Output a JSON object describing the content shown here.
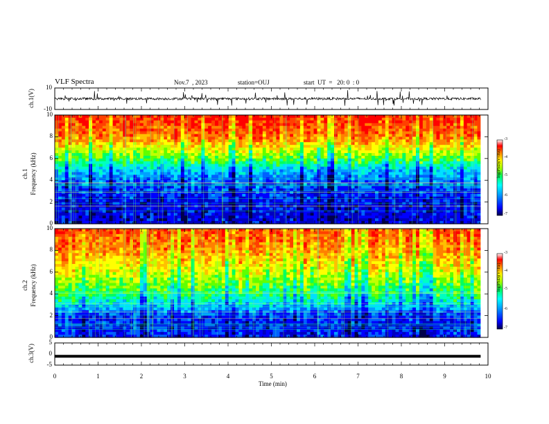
{
  "header": {
    "title": "VLF Spectra",
    "date": "Nov.7  , 2023",
    "station": "station=OUJ",
    "start": "start  UT  =   20: 0  : 0"
  },
  "colors": {
    "background": "#ffffff",
    "axis": "#000000",
    "trace": "#000000",
    "colormap": [
      "#0000a0",
      "#0000ff",
      "#00a0ff",
      "#00ffff",
      "#00ff80",
      "#80ff00",
      "#ffff00",
      "#ffa000",
      "#ff4000",
      "#ff0000",
      "#ffffff"
    ]
  },
  "chart_data": [
    {
      "type": "line",
      "panel": "ch1-waveform",
      "ylabel": "ch.1(V)",
      "ylim": [
        -10,
        10
      ],
      "yticks": [
        "10",
        "-10"
      ],
      "description_series": "waveform trace near 0 V with spikes",
      "baseline": 0
    },
    {
      "type": "heatmap",
      "panel": "ch1-spectrogram",
      "ylabel_line1": "ch.1",
      "ylabel_line2": "Frequency  (kHz)",
      "ylim": [
        0,
        10
      ],
      "yticks": [
        "0",
        "2",
        "4",
        "6",
        "8",
        "10"
      ],
      "colorbar": {
        "label": "log(PSD)(V²/Hz)",
        "ticks": [
          "-3",
          "-4",
          "-5",
          "-6",
          "-7"
        ],
        "range": [
          -7,
          -3
        ]
      },
      "approx_profile_khz": [
        [
          0,
          -6.5
        ],
        [
          2,
          -6.4
        ],
        [
          4,
          -6.0
        ],
        [
          5,
          -5.6
        ],
        [
          6,
          -4.8
        ],
        [
          7,
          -4.2
        ],
        [
          8,
          -3.6
        ],
        [
          10,
          -3.2
        ]
      ]
    },
    {
      "type": "heatmap",
      "panel": "ch2-spectrogram",
      "ylabel_line1": "ch.2",
      "ylabel_line2": "Frequency  (kHz)",
      "ylim": [
        0,
        10
      ],
      "yticks": [
        "0",
        "2",
        "4",
        "6",
        "8",
        "10"
      ],
      "colorbar": {
        "label": "log(PSD)(V²/Hz)",
        "ticks": [
          "-3",
          "-4",
          "-5",
          "-6",
          "-7"
        ],
        "range": [
          -7,
          -3
        ]
      },
      "approx_profile_khz": [
        [
          0,
          -6.3
        ],
        [
          2,
          -6.2
        ],
        [
          3,
          -5.5
        ],
        [
          4,
          -5.0
        ],
        [
          6,
          -4.3
        ],
        [
          8,
          -3.7
        ],
        [
          10,
          -3.4
        ]
      ]
    },
    {
      "type": "line",
      "panel": "ch3-waveform",
      "ylabel": "ch.3(V)",
      "ylim": [
        -5,
        5
      ],
      "yticks": [
        "5",
        "0",
        "-5"
      ],
      "baseline": -1
    }
  ],
  "xaxis": {
    "label": "Time  (min)",
    "range": [
      0,
      10
    ],
    "ticks": [
      "0",
      "1",
      "2",
      "3",
      "4",
      "5",
      "6",
      "7",
      "8",
      "9",
      "10"
    ],
    "data_end": 9.83
  }
}
